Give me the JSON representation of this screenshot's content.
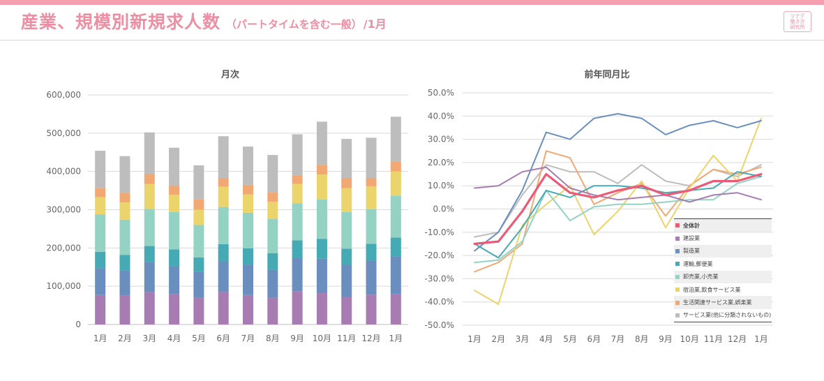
{
  "header": {
    "title": "産業、規模別新規求人数",
    "subtitle": "（パートタイムを含む一般）",
    "month": "/1月",
    "logo_lines": [
      "ツナグ",
      "働き方",
      "研究所"
    ]
  },
  "colors": {
    "accent": "#ee8ea2",
    "series": [
      "#ec5a78",
      "#a77cb2",
      "#6a8fbf",
      "#45aab3",
      "#94d2c4",
      "#ecd46c",
      "#f2a873",
      "#bdbdbd"
    ],
    "axis_text": "#666666",
    "grid": "#d9d9d9"
  },
  "chart_data": [
    {
      "type": "bar",
      "stacked": true,
      "title": "月次",
      "categories": [
        "1月",
        "2月",
        "3月",
        "4月",
        "5月",
        "6月",
        "7月",
        "8月",
        "9月",
        "10月",
        "11月",
        "12月",
        "1月"
      ],
      "ylim": [
        0,
        600000
      ],
      "yticks": [
        0,
        100000,
        200000,
        300000,
        400000,
        500000,
        600000
      ],
      "ytick_labels": [
        "0",
        "100,000",
        "200,000",
        "300,000",
        "400,000",
        "500,000",
        "600,000"
      ],
      "grid": true,
      "series": [
        {
          "name": "建設業",
          "values": [
            77000,
            75000,
            85000,
            80000,
            70000,
            85000,
            77000,
            70000,
            87000,
            82000,
            72000,
            78000,
            80000
          ]
        },
        {
          "name": "製造業",
          "values": [
            70000,
            67000,
            78000,
            73000,
            67000,
            80000,
            80000,
            73000,
            88000,
            90000,
            83000,
            88000,
            97000
          ]
        },
        {
          "name": "運輸,郵便業",
          "values": [
            43000,
            40000,
            42000,
            43000,
            38000,
            45000,
            42000,
            43000,
            45000,
            52000,
            43000,
            45000,
            50000
          ]
        },
        {
          "name": "卸売業,小売業",
          "values": [
            98000,
            92000,
            97000,
            98000,
            85000,
            97000,
            93000,
            90000,
            97000,
            103000,
            96000,
            90000,
            110000
          ]
        },
        {
          "name": "宿泊業,飲食サービス業",
          "values": [
            45000,
            45000,
            65000,
            45000,
            40000,
            53000,
            48000,
            45000,
            50000,
            65000,
            62000,
            60000,
            63000
          ]
        },
        {
          "name": "生活関連サービス業,娯楽業",
          "values": [
            23000,
            25000,
            27000,
            23000,
            27000,
            23000,
            25000,
            25000,
            23000,
            25000,
            27000,
            22000,
            25000
          ]
        },
        {
          "name": "サービス業(他に分類されないもの)",
          "values": [
            98000,
            96000,
            108000,
            100000,
            89000,
            109000,
            100000,
            97000,
            107000,
            113000,
            102000,
            105000,
            118000
          ]
        }
      ]
    },
    {
      "type": "line",
      "title": "前年同月比",
      "categories": [
        "1月",
        "2月",
        "3月",
        "4月",
        "5月",
        "6月",
        "7月",
        "8月",
        "9月",
        "10月",
        "11月",
        "12月",
        "1月"
      ],
      "ylim": [
        -50,
        50
      ],
      "yticks": [
        -50,
        -40,
        -30,
        -20,
        -10,
        0,
        10,
        20,
        30,
        40,
        50
      ],
      "ytick_labels": [
        "-50.0%",
        "-40.0%",
        "-30.0%",
        "-20.0%",
        "-10.0%",
        "0.0%",
        "10.0%",
        "20.0%",
        "30.0%",
        "40.0%",
        "50.0%"
      ],
      "grid": true,
      "legend_position": "bottom-right",
      "series": [
        {
          "name": "全体計",
          "values": [
            -15,
            -14,
            -1,
            15,
            7,
            5,
            8,
            10,
            6,
            8,
            12,
            12,
            15
          ]
        },
        {
          "name": "建設業",
          "values": [
            9,
            10,
            16,
            18,
            9,
            6,
            4,
            5,
            6,
            3,
            6,
            7,
            4
          ]
        },
        {
          "name": "製造業",
          "values": [
            -18,
            -10,
            8,
            33,
            30,
            39,
            41,
            39,
            32,
            36,
            38,
            35,
            38
          ]
        },
        {
          "name": "運輸,郵便業",
          "values": [
            -15,
            -21,
            -8,
            8,
            5,
            10,
            10,
            9,
            7,
            8,
            9,
            16,
            14
          ]
        },
        {
          "name": "卸売業,小売業",
          "values": [
            -23,
            -22,
            -14,
            8,
            -5,
            1,
            2,
            2,
            3,
            4,
            4,
            11,
            14
          ]
        },
        {
          "name": "宿泊業,飲食サービス業",
          "values": [
            -35,
            -41,
            -7,
            2,
            10,
            -11,
            -1,
            12,
            -8,
            9,
            23,
            12,
            39
          ]
        },
        {
          "name": "生活関連サービス業,娯楽業",
          "values": [
            -27,
            -23,
            -15,
            25,
            22,
            2,
            7,
            11,
            -3,
            10,
            17,
            15,
            18
          ]
        },
        {
          "name": "サービス業(他に分類されないもの)",
          "values": [
            -12,
            -10,
            6,
            19,
            16,
            16,
            11,
            19,
            12,
            10,
            17,
            14,
            19
          ]
        }
      ]
    }
  ]
}
